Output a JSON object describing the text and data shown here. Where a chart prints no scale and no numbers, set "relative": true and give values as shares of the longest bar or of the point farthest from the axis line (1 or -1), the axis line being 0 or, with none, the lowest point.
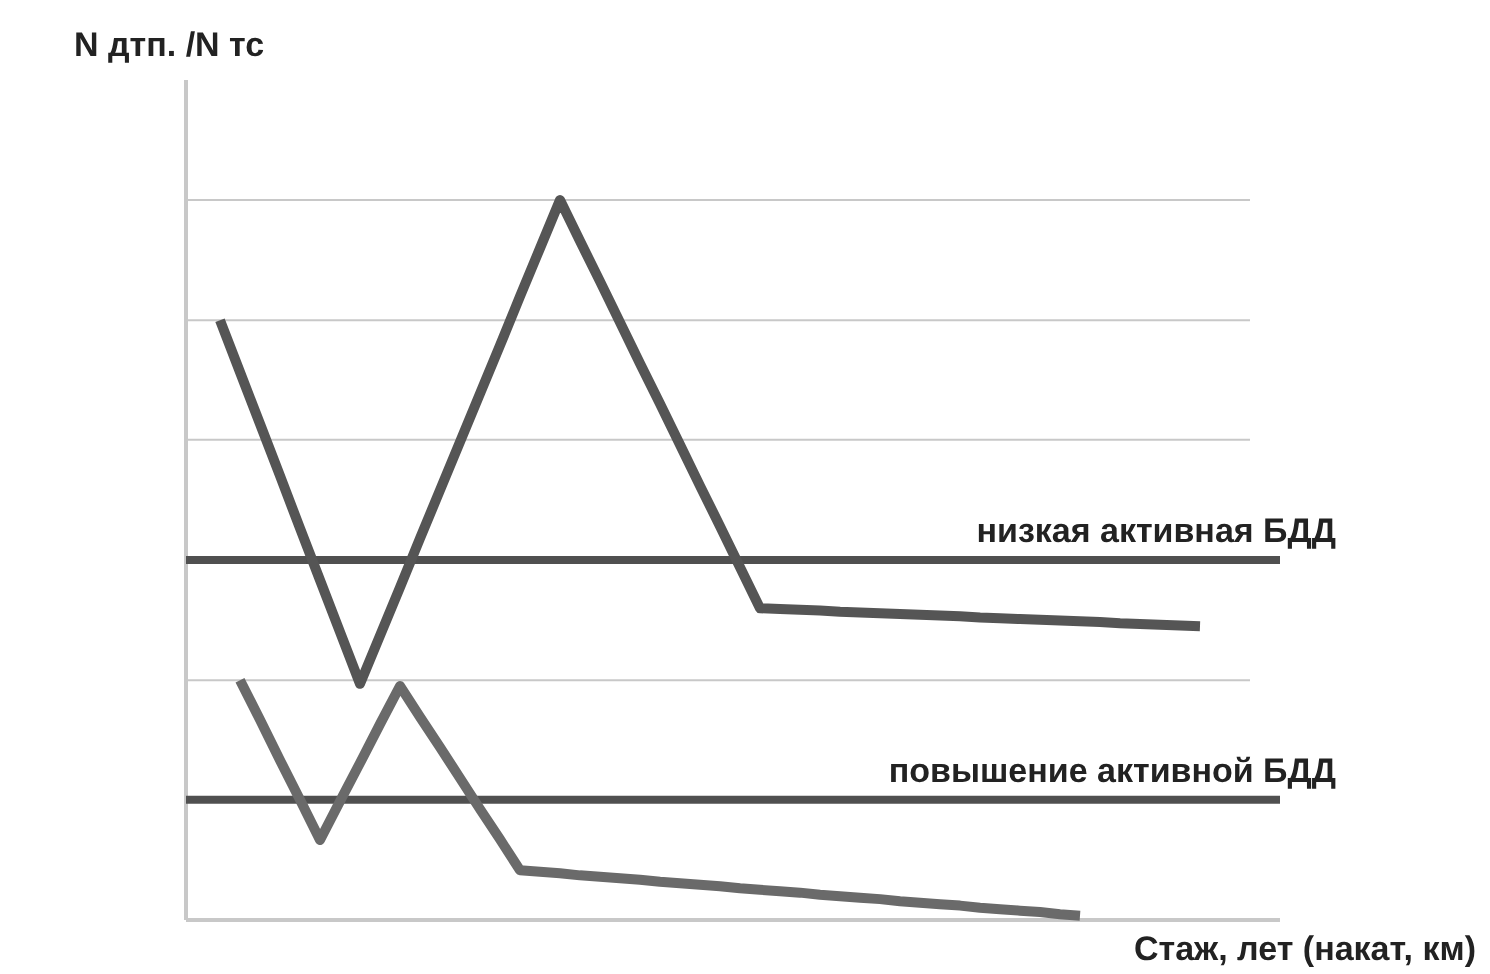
{
  "chart_data": {
    "type": "line",
    "relative": true,
    "ylabel": "N дтп. /N тс",
    "xlabel": "Стаж, лет (накат, км)",
    "categories": [
      null,
      null,
      null,
      null,
      null,
      null,
      null,
      null,
      null,
      null,
      null,
      null,
      null,
      null,
      null,
      null,
      null,
      null,
      null,
      null,
      null,
      null,
      null,
      null,
      null,
      null,
      null,
      null,
      null,
      null,
      null,
      null,
      null,
      null,
      null,
      null,
      null,
      null,
      null,
      null,
      null,
      null,
      null,
      null,
      null,
      null,
      null,
      null,
      null,
      null
    ],
    "marker": "none",
    "line_style": "solid",
    "series": [
      {
        "color": "#555555",
        "values": [
          0.833,
          0.761,
          0.689,
          0.617,
          0.544,
          0.472,
          0.4,
          0.328,
          0.395,
          0.462,
          0.53,
          0.597,
          0.664,
          0.731,
          0.798,
          0.866,
          0.933,
          1,
          0.943,
          0.887,
          0.83,
          0.773,
          0.717,
          0.66,
          0.603,
          0.547,
          0.49,
          0.433,
          0.432,
          0.431,
          0.43,
          0.428,
          0.427,
          0.426,
          0.425,
          0.424,
          0.423,
          0.422,
          0.42,
          0.419,
          0.418,
          0.417,
          0.416,
          0.415,
          0.414,
          0.412,
          0.411,
          0.41,
          0.409,
          0.408
        ]
      },
      {
        "color": "#6a6a6a",
        "values": [
          null,
          0.333,
          0.278,
          0.222,
          0.167,
          0.111,
          0.165,
          0.218,
          0.272,
          0.325,
          0.282,
          0.24,
          0.197,
          0.154,
          0.112,
          0.069,
          0.067,
          0.065,
          0.062,
          0.06,
          0.058,
          0.056,
          0.053,
          0.051,
          0.049,
          0.047,
          0.044,
          0.042,
          0.04,
          0.038,
          0.035,
          0.033,
          0.031,
          0.029,
          0.026,
          0.024,
          0.022,
          0.02,
          0.017,
          0.015,
          0.013,
          0.011,
          0.008,
          0.006,
          null,
          null,
          null,
          null,
          null,
          null
        ]
      }
    ],
    "ref_lines": [
      {
        "axis": "y",
        "value": 0.333,
        "color": "#c8c8c8"
      },
      {
        "axis": "y",
        "value": 0.667,
        "color": "#c8c8c8"
      },
      {
        "axis": "y",
        "value": 0.833,
        "color": "#c8c8c8"
      },
      {
        "axis": "y",
        "value": 1,
        "color": "#c8c8c8"
      },
      {
        "axis": "y",
        "value": 0.5,
        "label": "низкая активная БДД",
        "color": "#505050"
      },
      {
        "axis": "y",
        "value": 0.167,
        "label": "повышение активной БДД",
        "color": "#505050"
      }
    ]
  }
}
